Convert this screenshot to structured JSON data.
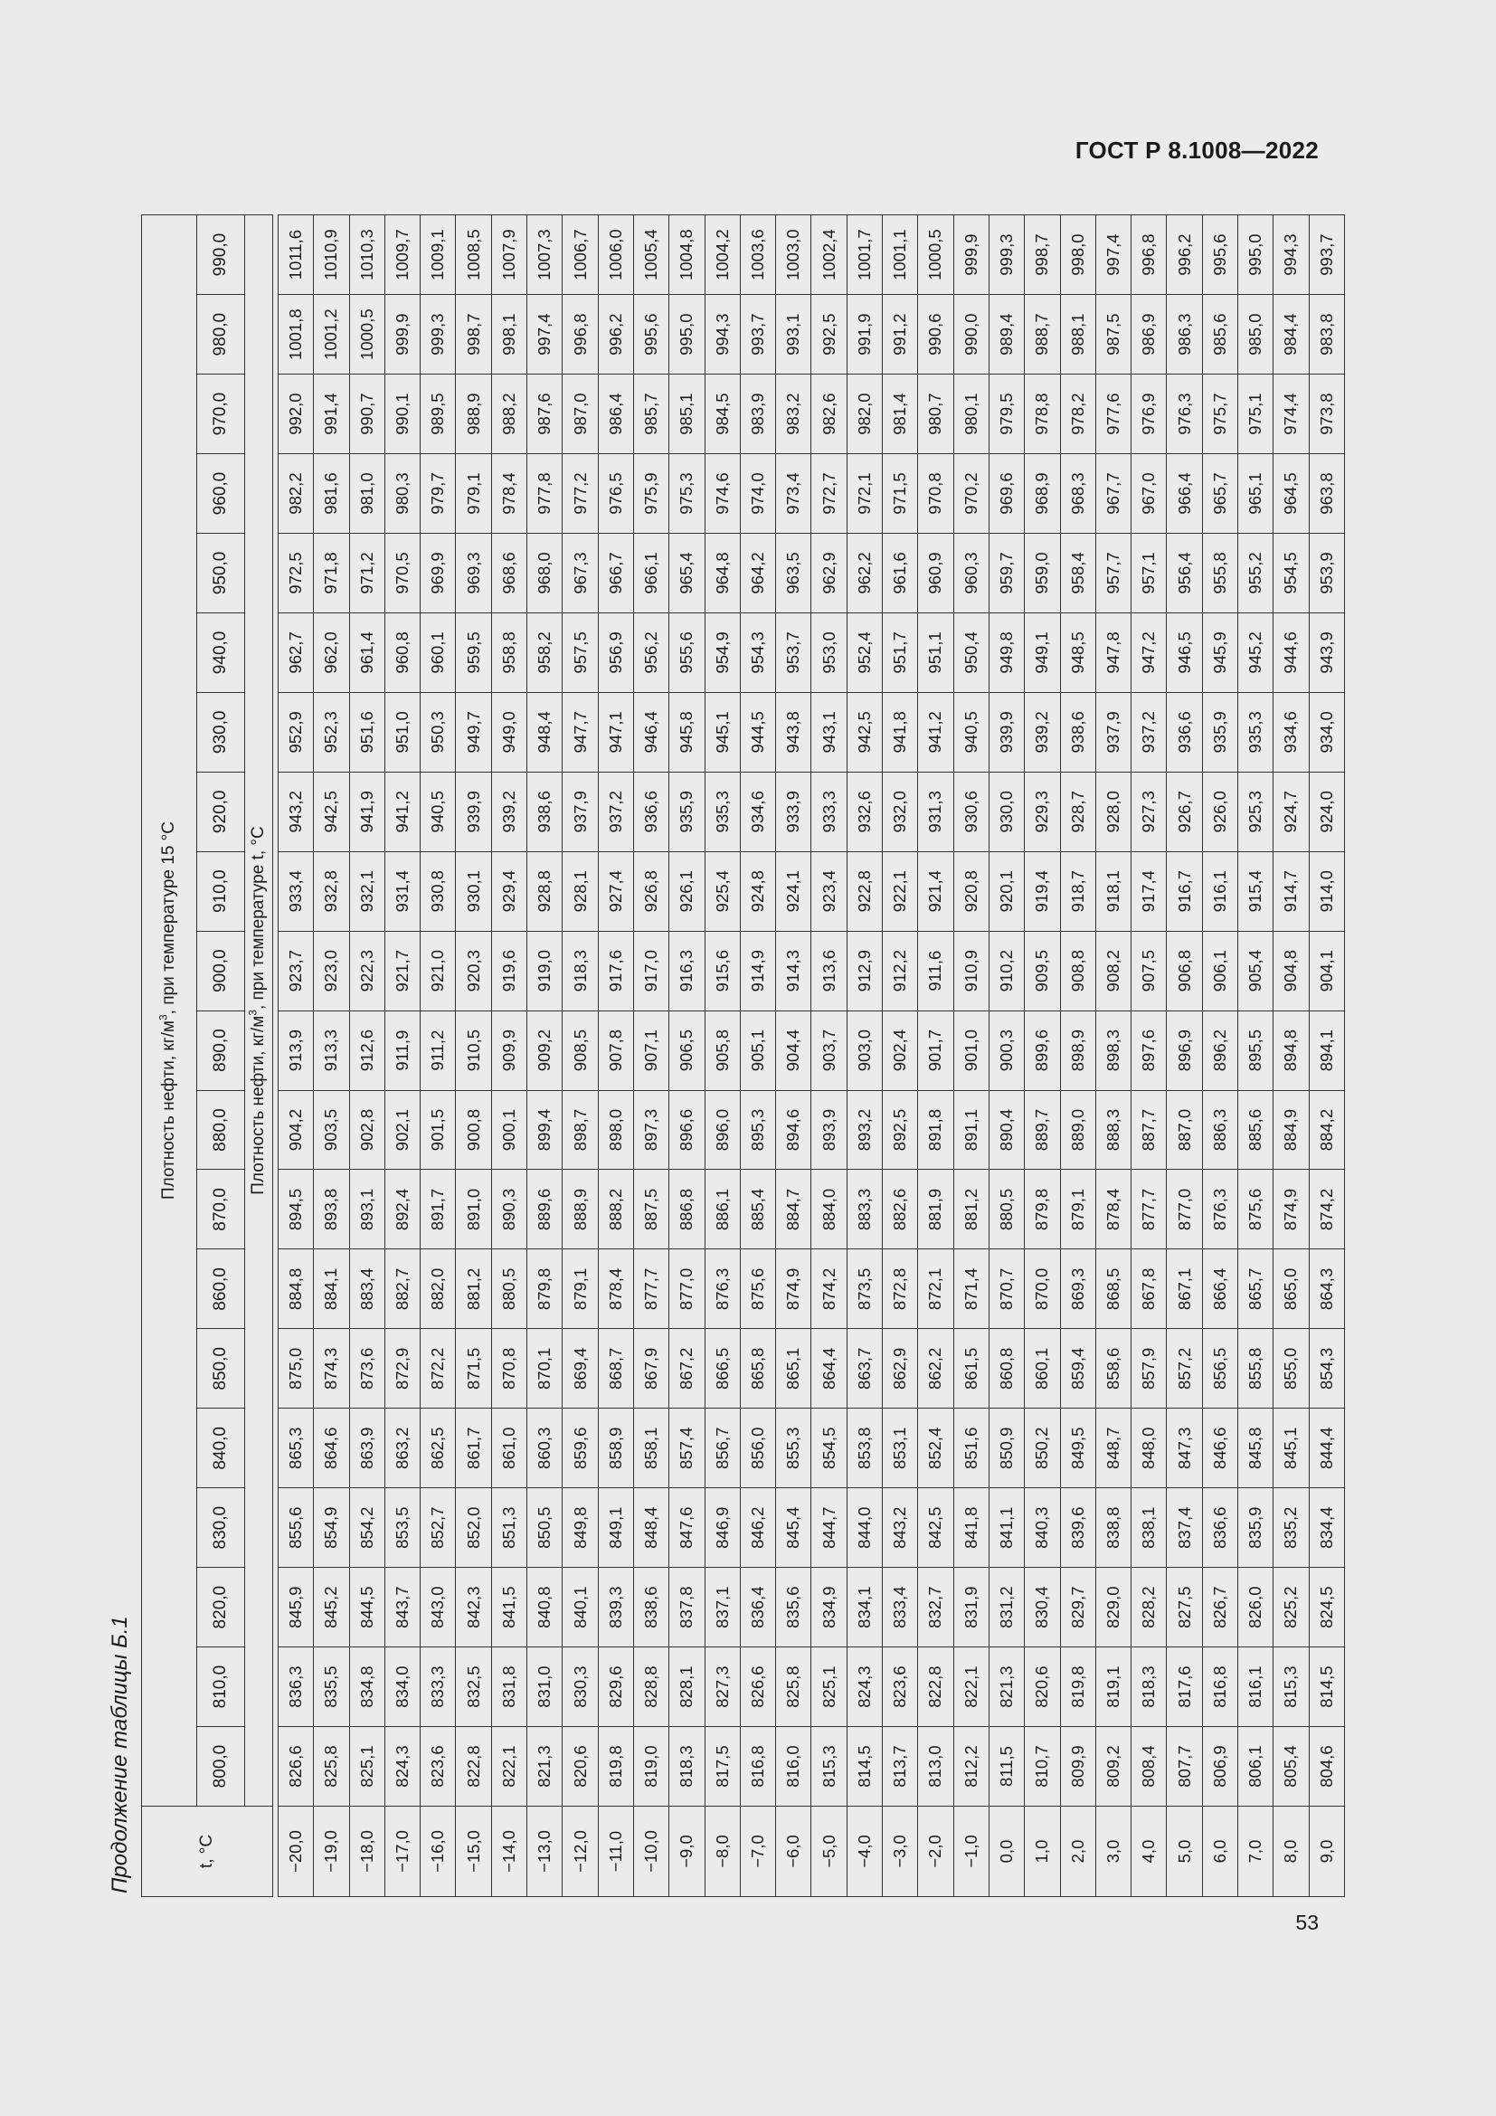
{
  "header": {
    "standard": "ГОСТ Р 8.1008—2022"
  },
  "page_number": "53",
  "caption": "Продолжение таблицы Б.1",
  "table": {
    "t_header": "t, °C",
    "group_header_pre": "Плотность нефти, кг/м",
    "group_header_sup": "3",
    "group_header_post": ", при температуре 15 °C",
    "sub_header_pre": "Плотность нефти, кг/м",
    "sub_header_sup": "3",
    "sub_header_post": ", при температуре t, °C",
    "density_columns": [
      "800,0",
      "810,0",
      "820,0",
      "830,0",
      "840,0",
      "850,0",
      "860,0",
      "870,0",
      "880,0",
      "890,0",
      "900,0",
      "910,0",
      "920,0",
      "930,0",
      "940,0",
      "950,0",
      "960,0",
      "970,0",
      "980,0",
      "990,0"
    ],
    "rows": [
      {
        "t": "−20,0",
        "v": [
          "826,6",
          "836,3",
          "845,9",
          "855,6",
          "865,3",
          "875,0",
          "884,8",
          "894,5",
          "904,2",
          "913,9",
          "923,7",
          "933,4",
          "943,2",
          "952,9",
          "962,7",
          "972,5",
          "982,2",
          "992,0",
          "1001,8",
          "1011,6"
        ]
      },
      {
        "t": "−19,0",
        "v": [
          "825,8",
          "835,5",
          "845,2",
          "854,9",
          "864,6",
          "874,3",
          "884,1",
          "893,8",
          "903,5",
          "913,3",
          "923,0",
          "932,8",
          "942,5",
          "952,3",
          "962,0",
          "971,8",
          "981,6",
          "991,4",
          "1001,2",
          "1010,9"
        ]
      },
      {
        "t": "−18,0",
        "v": [
          "825,1",
          "834,8",
          "844,5",
          "854,2",
          "863,9",
          "873,6",
          "883,4",
          "893,1",
          "902,8",
          "912,6",
          "922,3",
          "932,1",
          "941,9",
          "951,6",
          "961,4",
          "971,2",
          "981,0",
          "990,7",
          "1000,5",
          "1010,3"
        ]
      },
      {
        "t": "−17,0",
        "v": [
          "824,3",
          "834,0",
          "843,7",
          "853,5",
          "863,2",
          "872,9",
          "882,7",
          "892,4",
          "902,1",
          "911,9",
          "921,7",
          "931,4",
          "941,2",
          "951,0",
          "960,8",
          "970,5",
          "980,3",
          "990,1",
          "999,9",
          "1009,7"
        ]
      },
      {
        "t": "−16,0",
        "v": [
          "823,6",
          "833,3",
          "843,0",
          "852,7",
          "862,5",
          "872,2",
          "882,0",
          "891,7",
          "901,5",
          "911,2",
          "921,0",
          "930,8",
          "940,5",
          "950,3",
          "960,1",
          "969,9",
          "979,7",
          "989,5",
          "999,3",
          "1009,1"
        ]
      },
      {
        "t": "−15,0",
        "v": [
          "822,8",
          "832,5",
          "842,3",
          "852,0",
          "861,7",
          "871,5",
          "881,2",
          "891,0",
          "900,8",
          "910,5",
          "920,3",
          "930,1",
          "939,9",
          "949,7",
          "959,5",
          "969,3",
          "979,1",
          "988,9",
          "998,7",
          "1008,5"
        ]
      },
      {
        "t": "−14,0",
        "v": [
          "822,1",
          "831,8",
          "841,5",
          "851,3",
          "861,0",
          "870,8",
          "880,5",
          "890,3",
          "900,1",
          "909,9",
          "919,6",
          "929,4",
          "939,2",
          "949,0",
          "958,8",
          "968,6",
          "978,4",
          "988,2",
          "998,1",
          "1007,9"
        ]
      },
      {
        "t": "−13,0",
        "v": [
          "821,3",
          "831,0",
          "840,8",
          "850,5",
          "860,3",
          "870,1",
          "879,8",
          "889,6",
          "899,4",
          "909,2",
          "919,0",
          "928,8",
          "938,6",
          "948,4",
          "958,2",
          "968,0",
          "977,8",
          "987,6",
          "997,4",
          "1007,3"
        ]
      },
      {
        "t": "−12,0",
        "v": [
          "820,6",
          "830,3",
          "840,1",
          "849,8",
          "859,6",
          "869,4",
          "879,1",
          "888,9",
          "898,7",
          "908,5",
          "918,3",
          "928,1",
          "937,9",
          "947,7",
          "957,5",
          "967,3",
          "977,2",
          "987,0",
          "996,8",
          "1006,7"
        ]
      },
      {
        "t": "−11,0",
        "v": [
          "819,8",
          "829,6",
          "839,3",
          "849,1",
          "858,9",
          "868,7",
          "878,4",
          "888,2",
          "898,0",
          "907,8",
          "917,6",
          "927,4",
          "937,2",
          "947,1",
          "956,9",
          "966,7",
          "976,5",
          "986,4",
          "996,2",
          "1006,0"
        ]
      },
      {
        "t": "−10,0",
        "v": [
          "819,0",
          "828,8",
          "838,6",
          "848,4",
          "858,1",
          "867,9",
          "877,7",
          "887,5",
          "897,3",
          "907,1",
          "917,0",
          "926,8",
          "936,6",
          "946,4",
          "956,2",
          "966,1",
          "975,9",
          "985,7",
          "995,6",
          "1005,4"
        ]
      },
      {
        "t": "−9,0",
        "v": [
          "818,3",
          "828,1",
          "837,8",
          "847,6",
          "857,4",
          "867,2",
          "877,0",
          "886,8",
          "896,6",
          "906,5",
          "916,3",
          "926,1",
          "935,9",
          "945,8",
          "955,6",
          "965,4",
          "975,3",
          "985,1",
          "995,0",
          "1004,8"
        ]
      },
      {
        "t": "−8,0",
        "v": [
          "817,5",
          "827,3",
          "837,1",
          "846,9",
          "856,7",
          "866,5",
          "876,3",
          "886,1",
          "896,0",
          "905,8",
          "915,6",
          "925,4",
          "935,3",
          "945,1",
          "954,9",
          "964,8",
          "974,6",
          "984,5",
          "994,3",
          "1004,2"
        ]
      },
      {
        "t": "−7,0",
        "v": [
          "816,8",
          "826,6",
          "836,4",
          "846,2",
          "856,0",
          "865,8",
          "875,6",
          "885,4",
          "895,3",
          "905,1",
          "914,9",
          "924,8",
          "934,6",
          "944,5",
          "954,3",
          "964,2",
          "974,0",
          "983,9",
          "993,7",
          "1003,6"
        ]
      },
      {
        "t": "−6,0",
        "v": [
          "816,0",
          "825,8",
          "835,6",
          "845,4",
          "855,3",
          "865,1",
          "874,9",
          "884,7",
          "894,6",
          "904,4",
          "914,3",
          "924,1",
          "933,9",
          "943,8",
          "953,7",
          "963,5",
          "973,4",
          "983,2",
          "993,1",
          "1003,0"
        ]
      },
      {
        "t": "−5,0",
        "v": [
          "815,3",
          "825,1",
          "834,9",
          "844,7",
          "854,5",
          "864,4",
          "874,2",
          "884,0",
          "893,9",
          "903,7",
          "913,6",
          "923,4",
          "933,3",
          "943,1",
          "953,0",
          "962,9",
          "972,7",
          "982,6",
          "992,5",
          "1002,4"
        ]
      },
      {
        "t": "−4,0",
        "v": [
          "814,5",
          "824,3",
          "834,1",
          "844,0",
          "853,8",
          "863,7",
          "873,5",
          "883,3",
          "893,2",
          "903,0",
          "912,9",
          "922,8",
          "932,6",
          "942,5",
          "952,4",
          "962,2",
          "972,1",
          "982,0",
          "991,9",
          "1001,7"
        ]
      },
      {
        "t": "−3,0",
        "v": [
          "813,7",
          "823,6",
          "833,4",
          "843,2",
          "853,1",
          "862,9",
          "872,8",
          "882,6",
          "892,5",
          "902,4",
          "912,2",
          "922,1",
          "932,0",
          "941,8",
          "951,7",
          "961,6",
          "971,5",
          "981,4",
          "991,2",
          "1001,1"
        ]
      },
      {
        "t": "−2,0",
        "v": [
          "813,0",
          "822,8",
          "832,7",
          "842,5",
          "852,4",
          "862,2",
          "872,1",
          "881,9",
          "891,8",
          "901,7",
          "911,6",
          "921,4",
          "931,3",
          "941,2",
          "951,1",
          "960,9",
          "970,8",
          "980,7",
          "990,6",
          "1000,5"
        ]
      },
      {
        "t": "−1,0",
        "v": [
          "812,2",
          "822,1",
          "831,9",
          "841,8",
          "851,6",
          "861,5",
          "871,4",
          "881,2",
          "891,1",
          "901,0",
          "910,9",
          "920,8",
          "930,6",
          "940,5",
          "950,4",
          "960,3",
          "970,2",
          "980,1",
          "990,0",
          "999,9"
        ]
      },
      {
        "t": "0,0",
        "v": [
          "811,5",
          "821,3",
          "831,2",
          "841,1",
          "850,9",
          "860,8",
          "870,7",
          "880,5",
          "890,4",
          "900,3",
          "910,2",
          "920,1",
          "930,0",
          "939,9",
          "949,8",
          "959,7",
          "969,6",
          "979,5",
          "989,4",
          "999,3"
        ]
      },
      {
        "t": "1,0",
        "v": [
          "810,7",
          "820,6",
          "830,4",
          "840,3",
          "850,2",
          "860,1",
          "870,0",
          "879,8",
          "889,7",
          "899,6",
          "909,5",
          "919,4",
          "929,3",
          "939,2",
          "949,1",
          "959,0",
          "968,9",
          "978,8",
          "988,7",
          "998,7"
        ]
      },
      {
        "t": "2,0",
        "v": [
          "809,9",
          "819,8",
          "829,7",
          "839,6",
          "849,5",
          "859,4",
          "869,3",
          "879,1",
          "889,0",
          "898,9",
          "908,8",
          "918,7",
          "928,7",
          "938,6",
          "948,5",
          "958,4",
          "968,3",
          "978,2",
          "988,1",
          "998,0"
        ]
      },
      {
        "t": "3,0",
        "v": [
          "809,2",
          "819,1",
          "829,0",
          "838,8",
          "848,7",
          "858,6",
          "868,5",
          "878,4",
          "888,3",
          "898,3",
          "908,2",
          "918,1",
          "928,0",
          "937,9",
          "947,8",
          "957,7",
          "967,7",
          "977,6",
          "987,5",
          "997,4"
        ]
      },
      {
        "t": "4,0",
        "v": [
          "808,4",
          "818,3",
          "828,2",
          "838,1",
          "848,0",
          "857,9",
          "867,8",
          "877,7",
          "887,7",
          "897,6",
          "907,5",
          "917,4",
          "927,3",
          "937,2",
          "947,2",
          "957,1",
          "967,0",
          "976,9",
          "986,9",
          "996,8"
        ]
      },
      {
        "t": "5,0",
        "v": [
          "807,7",
          "817,6",
          "827,5",
          "837,4",
          "847,3",
          "857,2",
          "867,1",
          "877,0",
          "887,0",
          "896,9",
          "906,8",
          "916,7",
          "926,7",
          "936,6",
          "946,5",
          "956,4",
          "966,4",
          "976,3",
          "986,3",
          "996,2"
        ]
      },
      {
        "t": "6,0",
        "v": [
          "806,9",
          "816,8",
          "826,7",
          "836,6",
          "846,6",
          "856,5",
          "866,4",
          "876,3",
          "886,3",
          "896,2",
          "906,1",
          "916,1",
          "926,0",
          "935,9",
          "945,9",
          "955,8",
          "965,7",
          "975,7",
          "985,6",
          "995,6"
        ]
      },
      {
        "t": "7,0",
        "v": [
          "806,1",
          "816,1",
          "826,0",
          "835,9",
          "845,8",
          "855,8",
          "865,7",
          "875,6",
          "885,6",
          "895,5",
          "905,4",
          "915,4",
          "925,3",
          "935,3",
          "945,2",
          "955,2",
          "965,1",
          "975,1",
          "985,0",
          "995,0"
        ]
      },
      {
        "t": "8,0",
        "v": [
          "805,4",
          "815,3",
          "825,2",
          "835,2",
          "845,1",
          "855,0",
          "865,0",
          "874,9",
          "884,9",
          "894,8",
          "904,8",
          "914,7",
          "924,7",
          "934,6",
          "944,6",
          "954,5",
          "964,5",
          "974,4",
          "984,4",
          "994,3"
        ]
      },
      {
        "t": "9,0",
        "v": [
          "804,6",
          "814,5",
          "824,5",
          "834,4",
          "844,4",
          "854,3",
          "864,3",
          "874,2",
          "884,2",
          "894,1",
          "904,1",
          "914,0",
          "924,0",
          "934,0",
          "943,9",
          "953,9",
          "963,8",
          "973,8",
          "983,8",
          "993,7"
        ]
      }
    ]
  }
}
